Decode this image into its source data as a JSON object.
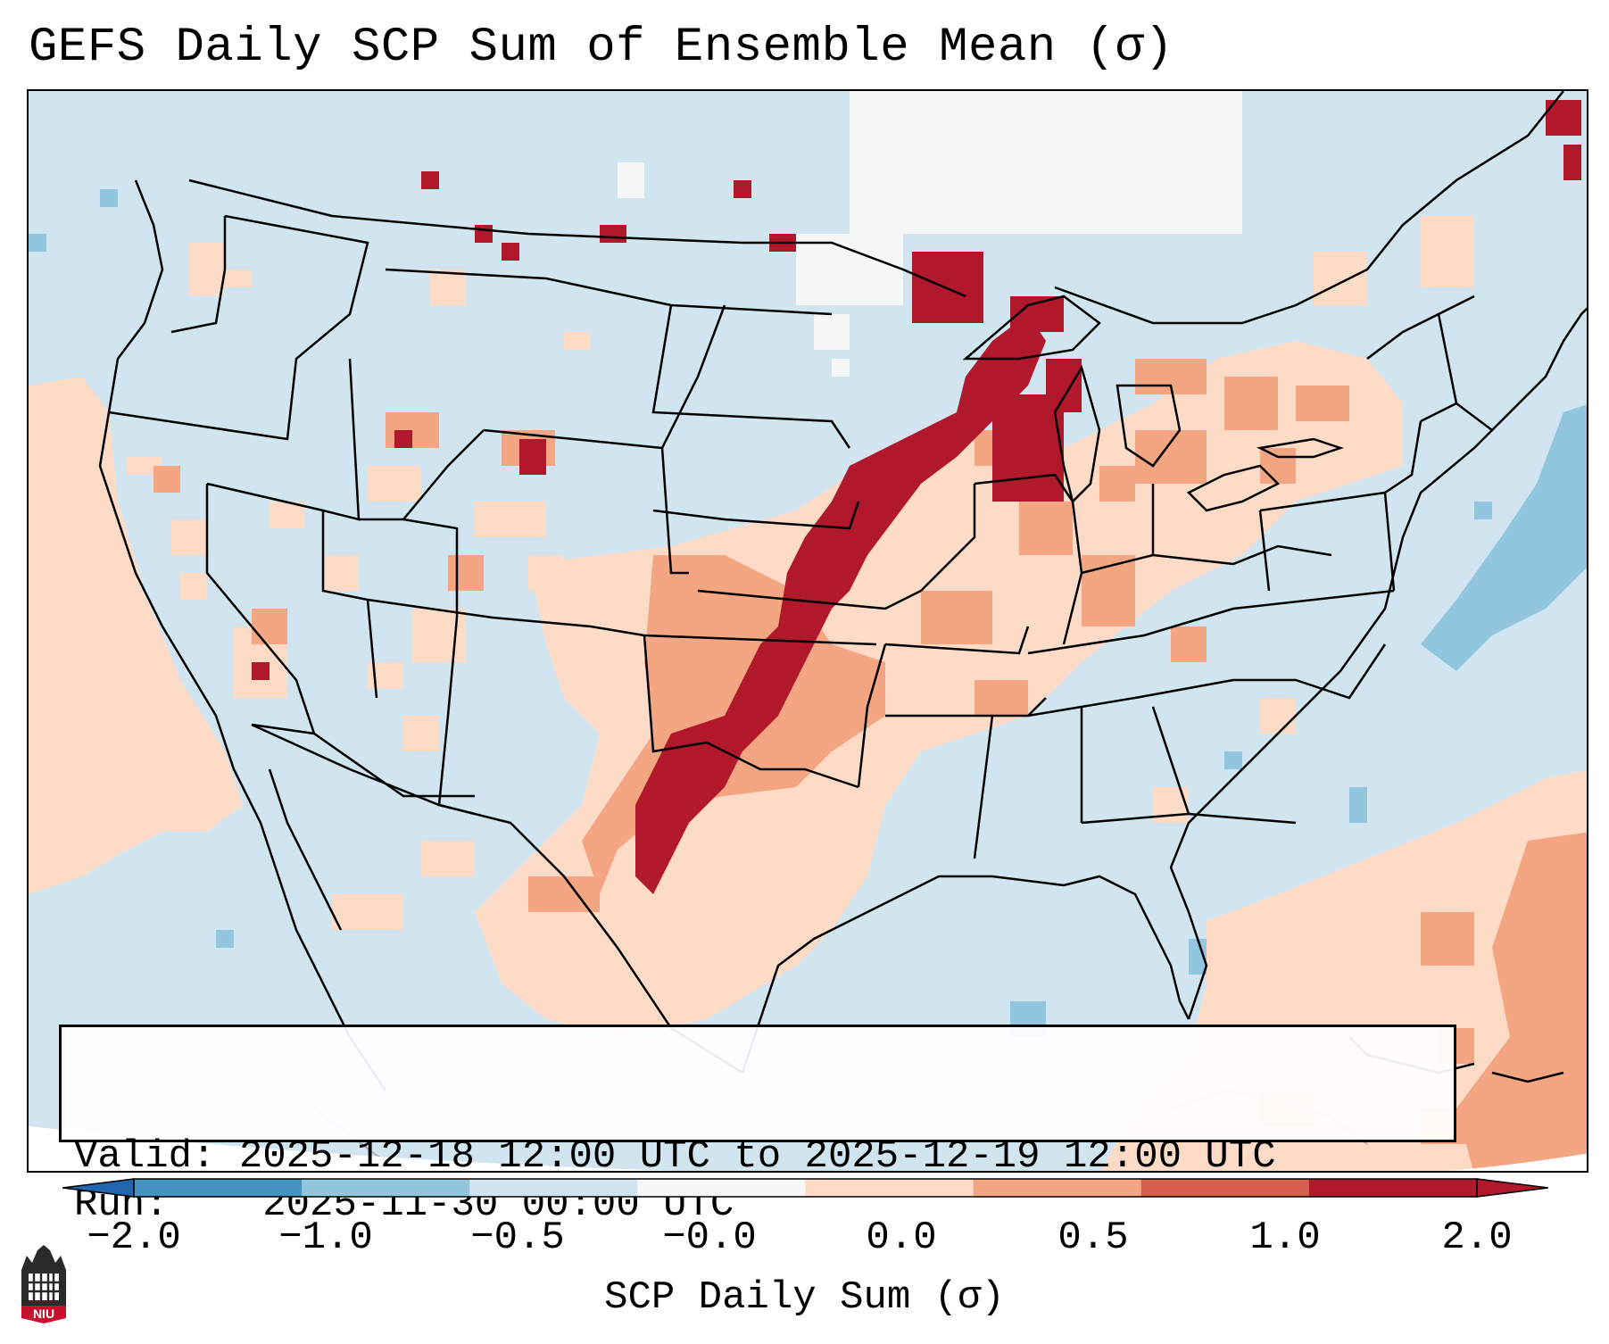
{
  "title": "GEFS Daily SCP Sum of Ensemble Mean (σ)",
  "info": {
    "valid_label": "Valid:",
    "valid_value": "2025-12-18 12:00 UTC to 2025-12-19 12:00 UTC",
    "run_label": "Run:",
    "run_value": "2025-11-30 00:00 UTC"
  },
  "colorbar": {
    "label": "SCP Daily Sum (σ)",
    "ticks": [
      "−2.0",
      "−1.0",
      "−0.5",
      "−0.0",
      "0.0",
      "0.5",
      "1.0",
      "2.0"
    ],
    "colors": [
      "#4393c3",
      "#92c5de",
      "#d1e5f0",
      "#f7f7f7",
      "#fddbc7",
      "#f4a582",
      "#d6604d",
      "#b2182b"
    ],
    "under_color": "#2166ac",
    "over_color": "#b2182b"
  },
  "logo": {
    "text": "NIU"
  },
  "map": {
    "background_color": "#d1e5f0",
    "features": [
      "state-boundaries",
      "country-borders",
      "coastlines",
      "great-lakes"
    ],
    "highlight_regions": [
      "southern-plains",
      "mid-mississippi-valley",
      "great-lakes",
      "northeast",
      "california",
      "atlantic-ocean"
    ]
  }
}
